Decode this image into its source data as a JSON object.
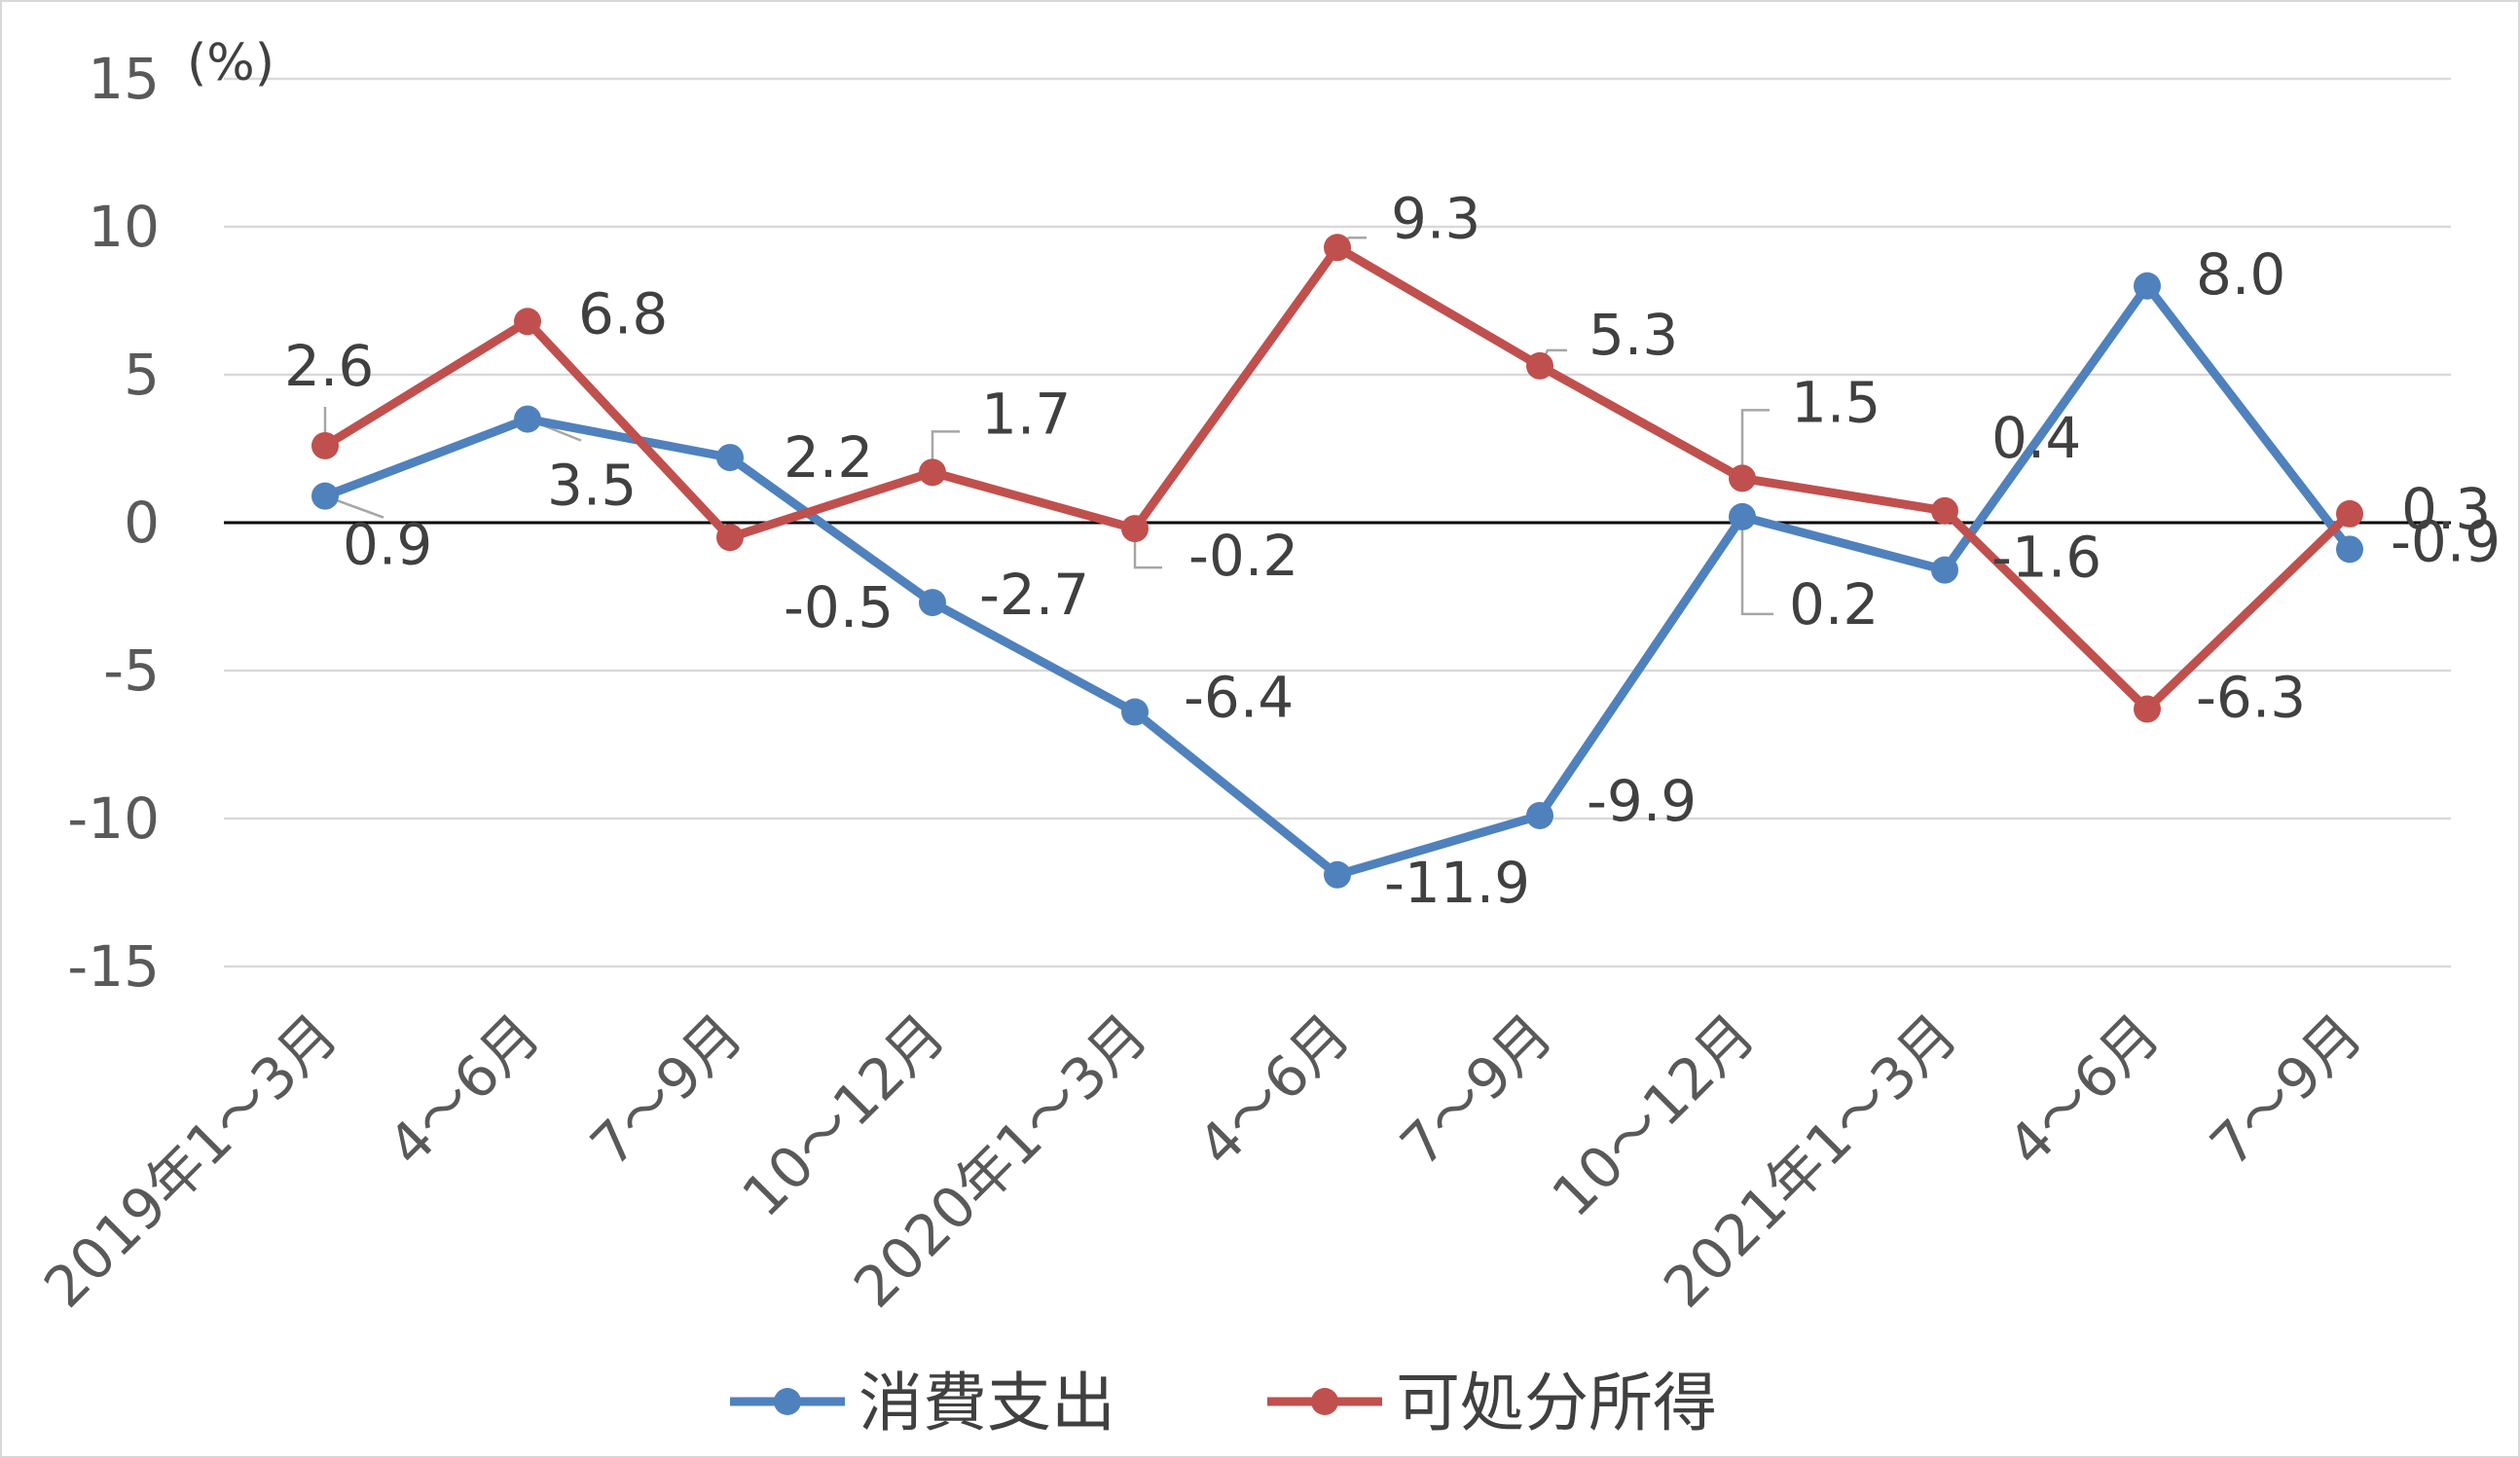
{
  "chart_data": {
    "type": "line",
    "unit_label": "(%)",
    "categories": [
      "2019年1～3月",
      "4～6月",
      "7～9月",
      "10～12月",
      "2020年1～3月",
      "4～6月",
      "7～9月",
      "10～12月",
      "2021年1～3月",
      "4～6月",
      "7～9月"
    ],
    "ylim": [
      -15,
      15
    ],
    "yticks": [
      15,
      10,
      5,
      0,
      -5,
      -10,
      -15
    ],
    "grid": true,
    "legend_position": "bottom",
    "series": [
      {
        "name": "消費支出",
        "color": "#4f81bd",
        "values": [
          0.9,
          3.5,
          2.2,
          -2.7,
          -6.4,
          -11.9,
          -9.9,
          0.2,
          -1.6,
          8.0,
          -0.9
        ],
        "labels": [
          "0.9",
          "3.5",
          "2.2",
          "-2.7",
          "-6.4",
          "-11.9",
          "-9.9",
          "0.2",
          "-1.6",
          "8.0",
          "-0.9"
        ]
      },
      {
        "name": "可処分所得",
        "color": "#c0504d",
        "values": [
          2.6,
          6.8,
          -0.5,
          1.7,
          -0.2,
          9.3,
          5.3,
          1.5,
          0.4,
          -6.3,
          0.3
        ],
        "labels": [
          "2.6",
          "6.8",
          "-0.5",
          "1.7",
          "-0.2",
          "9.3",
          "5.3",
          "1.5",
          "0.4",
          "-6.3",
          "0.3"
        ]
      }
    ]
  }
}
